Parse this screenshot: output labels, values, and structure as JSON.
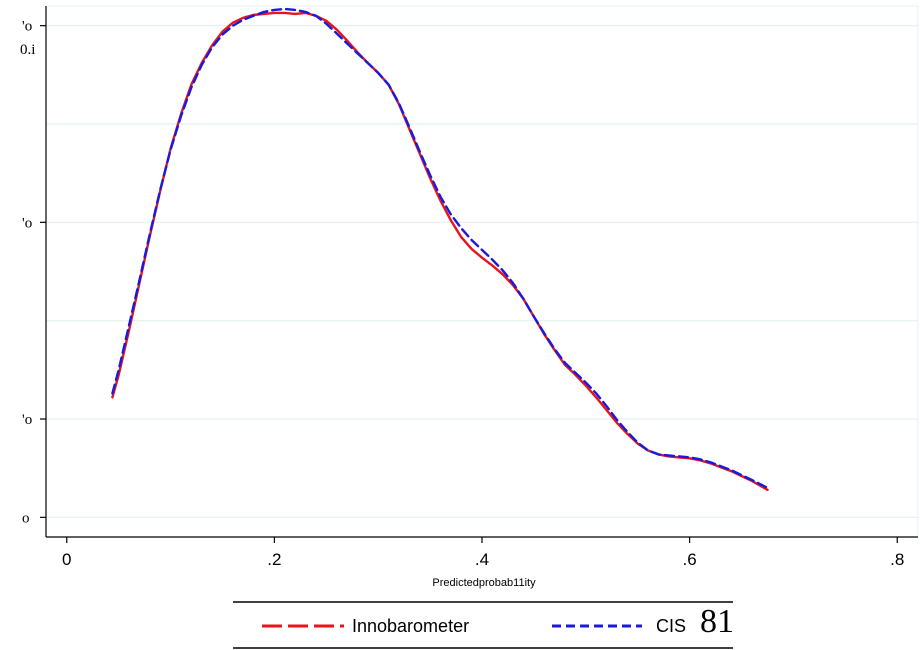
{
  "chart_data": {
    "type": "line",
    "title": "",
    "xlabel": "Predictedprobab11ity",
    "ylabel": "",
    "xlim": [
      -0.02,
      0.82
    ],
    "ylim": [
      -0.2,
      5.2
    ],
    "x_ticks": [
      {
        "value": 0,
        "label": "0"
      },
      {
        "value": 0.2,
        "label": ".2"
      },
      {
        "value": 0.4,
        "label": ".4"
      },
      {
        "value": 0.6,
        "label": ".6"
      },
      {
        "value": 0.8,
        "label": ".8"
      }
    ],
    "y_ticks": [
      {
        "value": 0,
        "label": "o"
      },
      {
        "value": 1,
        "label": "'o"
      },
      {
        "value": 3,
        "label": "'o"
      },
      {
        "value": 5,
        "label": "'o"
      }
    ],
    "y_extra_label": "0.i",
    "y_grid_values": [
      0,
      1,
      2,
      3,
      4,
      5
    ],
    "grid": true,
    "legend_position": "bottom",
    "series": [
      {
        "name": "Innobarometer",
        "color": "#e8141c",
        "dash": "long",
        "x": [
          0.044,
          0.05,
          0.06,
          0.07,
          0.08,
          0.09,
          0.1,
          0.11,
          0.12,
          0.13,
          0.14,
          0.15,
          0.16,
          0.17,
          0.18,
          0.19,
          0.2,
          0.21,
          0.22,
          0.23,
          0.24,
          0.25,
          0.26,
          0.27,
          0.28,
          0.29,
          0.3,
          0.31,
          0.32,
          0.33,
          0.34,
          0.35,
          0.36,
          0.37,
          0.38,
          0.39,
          0.4,
          0.41,
          0.42,
          0.43,
          0.44,
          0.45,
          0.46,
          0.47,
          0.48,
          0.49,
          0.5,
          0.51,
          0.52,
          0.53,
          0.54,
          0.55,
          0.56,
          0.57,
          0.58,
          0.59,
          0.6,
          0.61,
          0.62,
          0.63,
          0.64,
          0.65,
          0.66,
          0.675
        ],
        "y": [
          1.22,
          1.45,
          1.9,
          2.38,
          2.86,
          3.32,
          3.75,
          4.1,
          4.4,
          4.62,
          4.8,
          4.94,
          5.03,
          5.08,
          5.11,
          5.12,
          5.13,
          5.13,
          5.12,
          5.13,
          5.1,
          5.05,
          4.96,
          4.85,
          4.73,
          4.62,
          4.52,
          4.4,
          4.2,
          3.95,
          3.7,
          3.45,
          3.22,
          3.02,
          2.85,
          2.73,
          2.64,
          2.56,
          2.47,
          2.36,
          2.22,
          2.04,
          1.86,
          1.7,
          1.55,
          1.45,
          1.34,
          1.22,
          1.09,
          0.96,
          0.85,
          0.75,
          0.68,
          0.64,
          0.62,
          0.61,
          0.6,
          0.58,
          0.55,
          0.51,
          0.47,
          0.42,
          0.37,
          0.28
        ]
      },
      {
        "name": "CIS",
        "color": "#1a1adc",
        "dash": "short",
        "x": [
          0.044,
          0.05,
          0.06,
          0.07,
          0.08,
          0.09,
          0.1,
          0.11,
          0.12,
          0.13,
          0.14,
          0.15,
          0.16,
          0.17,
          0.18,
          0.19,
          0.2,
          0.21,
          0.22,
          0.23,
          0.24,
          0.25,
          0.26,
          0.27,
          0.28,
          0.29,
          0.3,
          0.31,
          0.32,
          0.33,
          0.34,
          0.35,
          0.36,
          0.37,
          0.38,
          0.39,
          0.4,
          0.41,
          0.42,
          0.43,
          0.44,
          0.45,
          0.46,
          0.47,
          0.48,
          0.49,
          0.5,
          0.51,
          0.52,
          0.53,
          0.54,
          0.55,
          0.56,
          0.57,
          0.58,
          0.59,
          0.6,
          0.61,
          0.62,
          0.63,
          0.64,
          0.65,
          0.66,
          0.675
        ],
        "y": [
          1.26,
          1.5,
          1.95,
          2.41,
          2.88,
          3.33,
          3.74,
          4.08,
          4.37,
          4.6,
          4.78,
          4.91,
          5.0,
          5.06,
          5.1,
          5.14,
          5.16,
          5.17,
          5.16,
          5.14,
          5.1,
          5.02,
          4.92,
          4.82,
          4.72,
          4.62,
          4.52,
          4.4,
          4.21,
          3.97,
          3.72,
          3.48,
          3.26,
          3.08,
          2.94,
          2.82,
          2.72,
          2.62,
          2.51,
          2.38,
          2.22,
          2.04,
          1.87,
          1.71,
          1.57,
          1.47,
          1.37,
          1.26,
          1.13,
          0.99,
          0.87,
          0.76,
          0.68,
          0.64,
          0.63,
          0.62,
          0.61,
          0.59,
          0.56,
          0.52,
          0.48,
          0.43,
          0.38,
          0.3
        ]
      }
    ],
    "legend": {
      "items": [
        {
          "label": "Innobarometer"
        },
        {
          "label": "CIS"
        }
      ],
      "suffix": "81"
    }
  }
}
